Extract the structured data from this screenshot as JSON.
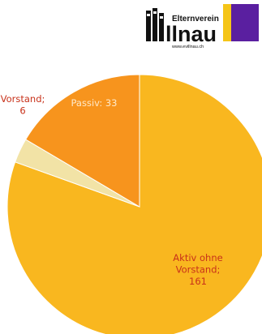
{
  "logo": {
    "name_small": "Elternverein",
    "name_large": "llnau",
    "url": "www.evillnau.ch",
    "colors": {
      "dark": "#111111",
      "yellow": "#f5c518",
      "purple": "#5a1fa0"
    }
  },
  "chart_data": {
    "type": "pie",
    "slices": [
      {
        "label_lines": [
          "Aktiv ohne",
          "Vorstand;",
          "161"
        ],
        "category": "Aktiv ohne Vorstand",
        "value": 161,
        "color": "#f9b71f",
        "label_color": "#c8321a"
      },
      {
        "label_lines": [
          "Vorstand;",
          "6"
        ],
        "category": "Vorstand",
        "value": 6,
        "color": "#f2e3a6",
        "label_color": "#c8321a"
      },
      {
        "label_lines": [
          "Passiv: 33"
        ],
        "category": "Passiv",
        "value": 33,
        "color": "#f7941d",
        "label_color": "#ffe9c9"
      }
    ],
    "start_angle_deg": 0,
    "direction": "clockwise"
  }
}
